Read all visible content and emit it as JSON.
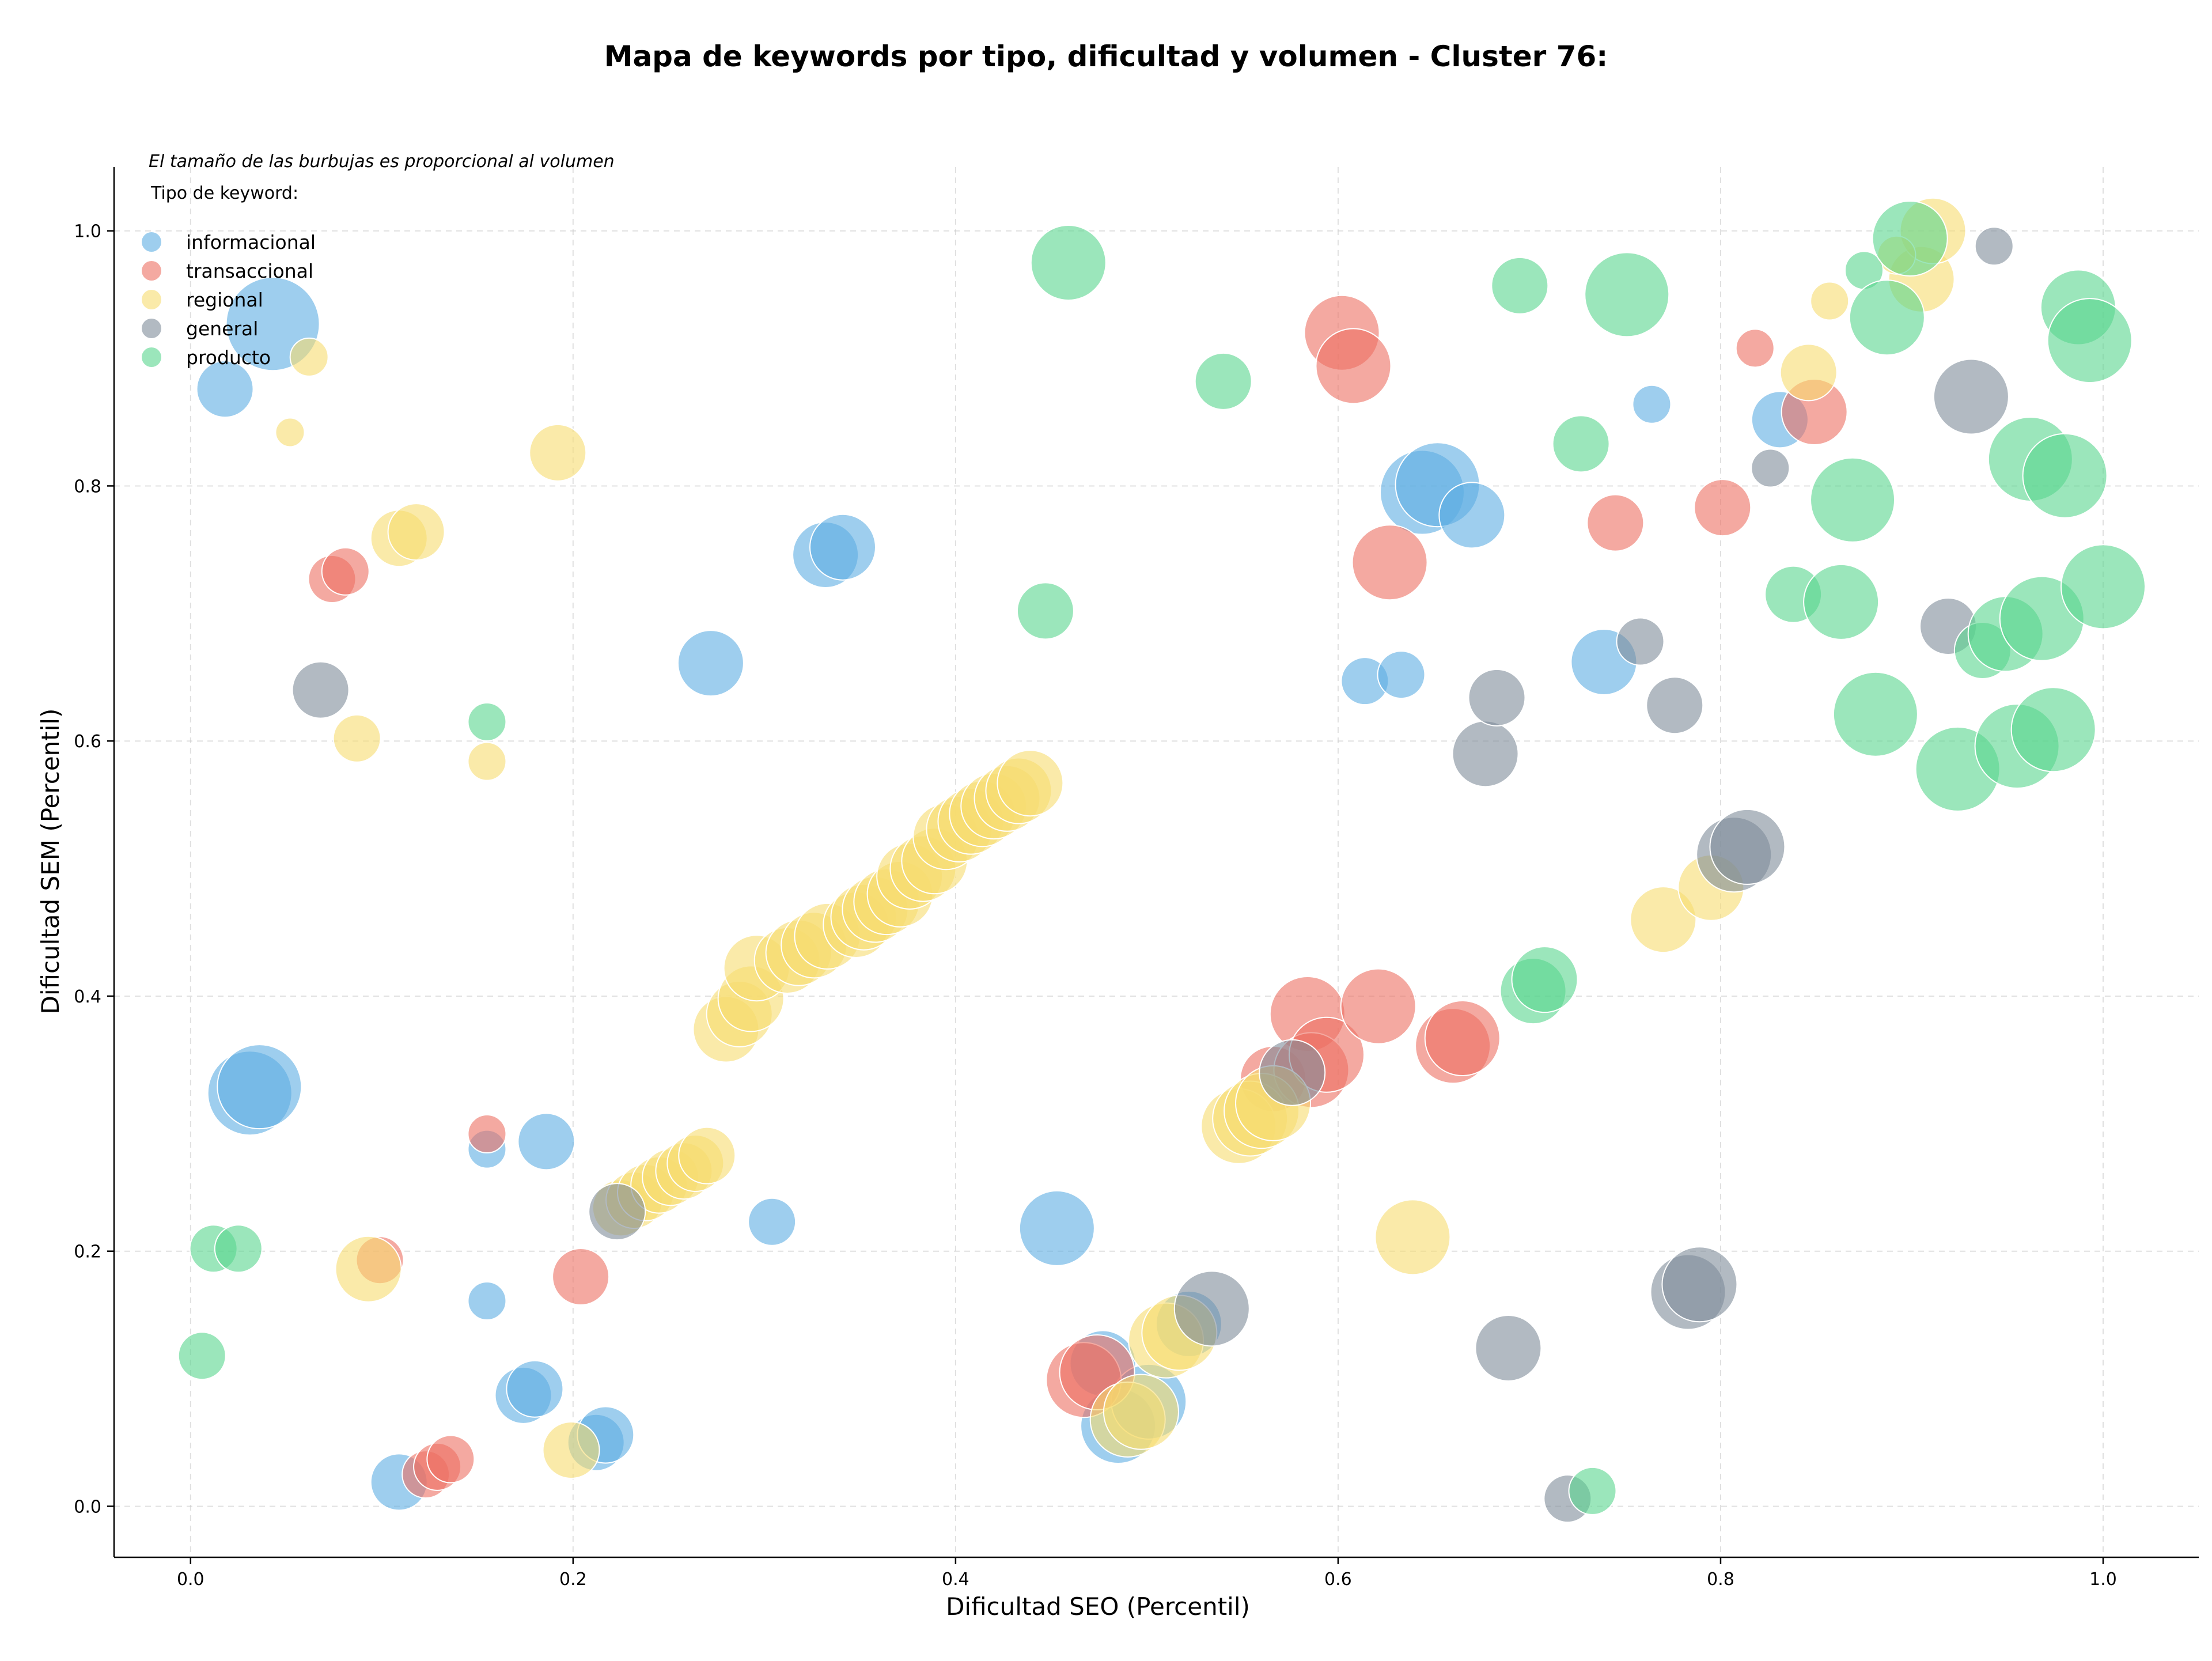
{
  "chart_data": {
    "type": "scatter",
    "title": "Mapa de keywords por tipo, dificultad y volumen - Cluster 76:",
    "xlabel": "Dificultad SEO (Percentil)",
    "ylabel": "Dificultad SEM (Percentil)",
    "xlim": [
      -0.04,
      1.05
    ],
    "ylim": [
      -0.04,
      1.05
    ],
    "x_ticks": [
      "0.0",
      "0.2",
      "0.4",
      "0.6",
      "0.8",
      "1.0"
    ],
    "y_ticks": [
      "0.0",
      "0.2",
      "0.4",
      "0.6",
      "0.8",
      "1.0"
    ],
    "grid": true,
    "note": "El tamaño de las burbujas es proporcional al volumen",
    "legend_title": "Tipo de keyword:",
    "legend_position": "top-left",
    "series": [
      {
        "name": "informacional",
        "color": "#5DADE2",
        "points": [
          [
            0.043,
            0.927,
            9
          ],
          [
            0.018,
            0.876,
            5
          ],
          [
            0.031,
            0.324,
            8
          ],
          [
            0.036,
            0.329,
            8
          ],
          [
            0.155,
            0.28,
            3
          ],
          [
            0.186,
            0.286,
            5
          ],
          [
            0.155,
            0.161,
            3
          ],
          [
            0.174,
            0.087,
            5
          ],
          [
            0.18,
            0.092,
            5
          ],
          [
            0.109,
            0.019,
            5
          ],
          [
            0.212,
            0.05,
            5
          ],
          [
            0.217,
            0.056,
            5
          ],
          [
            0.304,
            0.223,
            4
          ],
          [
            0.272,
            0.661,
            6
          ],
          [
            0.332,
            0.746,
            6
          ],
          [
            0.341,
            0.752,
            6
          ],
          [
            0.453,
            0.218,
            7
          ],
          [
            0.477,
            0.112,
            6
          ],
          [
            0.485,
            0.063,
            7
          ],
          [
            0.501,
            0.082,
            7
          ],
          [
            0.522,
            0.143,
            6
          ],
          [
            0.644,
            0.795,
            8
          ],
          [
            0.652,
            0.801,
            8
          ],
          [
            0.67,
            0.777,
            6
          ],
          [
            0.614,
            0.647,
            4
          ],
          [
            0.633,
            0.652,
            4
          ],
          [
            0.739,
            0.662,
            6
          ],
          [
            0.764,
            0.864,
            3
          ],
          [
            0.831,
            0.852,
            5
          ]
        ]
      },
      {
        "name": "transaccional",
        "color": "#EC7063",
        "points": [
          [
            0.074,
            0.727,
            4
          ],
          [
            0.081,
            0.733,
            4
          ],
          [
            0.099,
            0.193,
            4
          ],
          [
            0.155,
            0.292,
            3
          ],
          [
            0.123,
            0.025,
            4
          ],
          [
            0.129,
            0.031,
            4
          ],
          [
            0.136,
            0.037,
            4
          ],
          [
            0.204,
            0.18,
            5
          ],
          [
            0.467,
            0.099,
            7
          ],
          [
            0.474,
            0.105,
            7
          ],
          [
            0.566,
            0.335,
            6
          ],
          [
            0.584,
            0.386,
            7
          ],
          [
            0.586,
            0.342,
            7
          ],
          [
            0.594,
            0.354,
            7
          ],
          [
            0.602,
            0.92,
            7
          ],
          [
            0.608,
            0.894,
            7
          ],
          [
            0.621,
            0.392,
            7
          ],
          [
            0.627,
            0.74,
            7
          ],
          [
            0.66,
            0.361,
            7
          ],
          [
            0.665,
            0.367,
            7
          ],
          [
            0.745,
            0.771,
            5
          ],
          [
            0.801,
            0.783,
            5
          ],
          [
            0.818,
            0.908,
            3
          ],
          [
            0.849,
            0.858,
            6
          ]
        ]
      },
      {
        "name": "regional",
        "color": "#F7DC6F",
        "points": [
          [
            0.062,
            0.901,
            3
          ],
          [
            0.052,
            0.842,
            2
          ],
          [
            0.087,
            0.602,
            4
          ],
          [
            0.109,
            0.759,
            5
          ],
          [
            0.118,
            0.764,
            5
          ],
          [
            0.192,
            0.826,
            5
          ],
          [
            0.155,
            0.584,
            3
          ],
          [
            0.093,
            0.186,
            6
          ],
          [
            0.199,
            0.044,
            5
          ],
          [
            0.225,
            0.234,
            5
          ],
          [
            0.232,
            0.24,
            5
          ],
          [
            0.238,
            0.246,
            5
          ],
          [
            0.245,
            0.252,
            5
          ],
          [
            0.251,
            0.258,
            5
          ],
          [
            0.258,
            0.263,
            5
          ],
          [
            0.264,
            0.269,
            5
          ],
          [
            0.27,
            0.275,
            5
          ],
          [
            0.28,
            0.374,
            6
          ],
          [
            0.287,
            0.386,
            6
          ],
          [
            0.293,
            0.398,
            6
          ],
          [
            0.296,
            0.422,
            6
          ],
          [
            0.312,
            0.428,
            6
          ],
          [
            0.318,
            0.434,
            6
          ],
          [
            0.326,
            0.44,
            6
          ],
          [
            0.333,
            0.447,
            6
          ],
          [
            0.348,
            0.456,
            6
          ],
          [
            0.352,
            0.462,
            6
          ],
          [
            0.358,
            0.468,
            6
          ],
          [
            0.364,
            0.474,
            6
          ],
          [
            0.371,
            0.48,
            6
          ],
          [
            0.376,
            0.494,
            6
          ],
          [
            0.383,
            0.5,
            6
          ],
          [
            0.389,
            0.506,
            6
          ],
          [
            0.395,
            0.525,
            6
          ],
          [
            0.402,
            0.531,
            6
          ],
          [
            0.408,
            0.537,
            6
          ],
          [
            0.414,
            0.543,
            6
          ],
          [
            0.42,
            0.549,
            6
          ],
          [
            0.427,
            0.555,
            6
          ],
          [
            0.433,
            0.561,
            6
          ],
          [
            0.439,
            0.567,
            6
          ],
          [
            0.49,
            0.068,
            7
          ],
          [
            0.497,
            0.074,
            7
          ],
          [
            0.51,
            0.13,
            7
          ],
          [
            0.517,
            0.136,
            7
          ],
          [
            0.548,
            0.298,
            7
          ],
          [
            0.554,
            0.304,
            7
          ],
          [
            0.56,
            0.31,
            7
          ],
          [
            0.566,
            0.316,
            7
          ],
          [
            0.639,
            0.211,
            7
          ],
          [
            0.77,
            0.46,
            6
          ],
          [
            0.795,
            0.485,
            6
          ],
          [
            0.846,
            0.889,
            5
          ],
          [
            0.857,
            0.945,
            3
          ],
          [
            0.905,
            0.962,
            6
          ],
          [
            0.911,
            1.0,
            6
          ],
          [
            0.892,
            0.981,
            3
          ]
        ]
      },
      {
        "name": "general",
        "color": "#7F8C9A",
        "points": [
          [
            0.068,
            0.64,
            5
          ],
          [
            0.223,
            0.231,
            5
          ],
          [
            0.576,
            0.34,
            6
          ],
          [
            0.534,
            0.155,
            7
          ],
          [
            0.677,
            0.59,
            6
          ],
          [
            0.683,
            0.634,
            5
          ],
          [
            0.689,
            0.124,
            6
          ],
          [
            0.72,
            0.006,
            4
          ],
          [
            0.758,
            0.678,
            4
          ],
          [
            0.776,
            0.628,
            5
          ],
          [
            0.783,
            0.168,
            7
          ],
          [
            0.789,
            0.174,
            7
          ],
          [
            0.807,
            0.511,
            7
          ],
          [
            0.814,
            0.517,
            7
          ],
          [
            0.826,
            0.814,
            3
          ],
          [
            0.919,
            0.69,
            5
          ],
          [
            0.931,
            0.87,
            7
          ],
          [
            0.943,
            0.988,
            3
          ]
        ]
      },
      {
        "name": "producto",
        "color": "#58D68D",
        "points": [
          [
            0.006,
            0.118,
            4
          ],
          [
            0.012,
            0.202,
            4
          ],
          [
            0.025,
            0.202,
            4
          ],
          [
            0.155,
            0.615,
            3
          ],
          [
            0.447,
            0.702,
            5
          ],
          [
            0.459,
            0.975,
            7
          ],
          [
            0.54,
            0.882,
            5
          ],
          [
            0.695,
            0.957,
            5
          ],
          [
            0.702,
            0.404,
            6
          ],
          [
            0.708,
            0.413,
            6
          ],
          [
            0.727,
            0.833,
            5
          ],
          [
            0.733,
            0.012,
            4
          ],
          [
            0.751,
            0.95,
            8
          ],
          [
            0.838,
            0.715,
            5
          ],
          [
            0.863,
            0.709,
            7
          ],
          [
            0.869,
            0.789,
            8
          ],
          [
            0.875,
            0.969,
            3
          ],
          [
            0.881,
            0.621,
            8
          ],
          [
            0.887,
            0.932,
            7
          ],
          [
            0.899,
            0.994,
            7
          ],
          [
            0.924,
            0.578,
            8
          ],
          [
            0.937,
            0.671,
            5
          ],
          [
            0.949,
            0.684,
            7
          ],
          [
            0.955,
            0.596,
            8
          ],
          [
            0.962,
            0.821,
            8
          ],
          [
            0.968,
            0.696,
            8
          ],
          [
            0.974,
            0.609,
            8
          ],
          [
            0.98,
            0.808,
            8
          ],
          [
            0.987,
            0.94,
            7
          ],
          [
            0.993,
            0.914,
            8
          ],
          [
            1.0,
            0.721,
            8
          ]
        ]
      }
    ]
  }
}
